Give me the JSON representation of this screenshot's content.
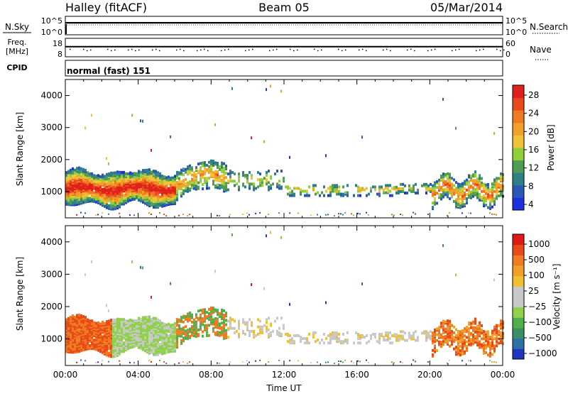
{
  "header": {
    "station": "Halley (fitACF)",
    "beam": "Beam 05",
    "date": "05/Mar/2014"
  },
  "strips": {
    "nsky": {
      "label": "N.Sky",
      "right_label": "N.Search",
      "tick_top": "10^5",
      "tick_bottom": "10^0",
      "level": 0.65
    },
    "freq": {
      "label": "Freq.",
      "unit": "[MHz]",
      "right_label": "Nave",
      "tick_top": "18",
      "tick_bottom": "8",
      "right_tick_top": "60",
      "right_tick_bottom": "0",
      "level": 0.55
    },
    "cpid": {
      "label": "CPID",
      "mode": "normal (fast) 151"
    }
  },
  "chart_data": [
    {
      "type": "heatmap",
      "quantity": "power",
      "ylabel": "Slant Range [km]",
      "xlabel": "",
      "xlim": [
        0,
        24
      ],
      "ylim": [
        180,
        4500
      ],
      "yticks": [
        "1000",
        "2000",
        "3000",
        "4000"
      ],
      "colorbar": {
        "label": "Power [dB]",
        "ticks": [
          "4",
          "8",
          "12",
          "16",
          "20",
          "24",
          "28"
        ],
        "range": [
          0,
          30
        ],
        "colors": [
          "#1f2fe0",
          "#2b57b8",
          "#2f7f86",
          "#4f9c52",
          "#8fcf3a",
          "#f0c23a",
          "#f2a02a",
          "#f07a20",
          "#e84a1c",
          "#e0201c"
        ]
      }
    },
    {
      "type": "heatmap",
      "quantity": "velocity",
      "ylabel": "Slant Range [km]",
      "xlabel": "Time UT",
      "xlim": [
        0,
        24
      ],
      "ylim": [
        180,
        4500
      ],
      "xticks": [
        "00:00",
        "04:00",
        "08:00",
        "12:00",
        "16:00",
        "20:00",
        "00:00"
      ],
      "yticks": [
        "1000",
        "2000",
        "3000",
        "4000"
      ],
      "colorbar": {
        "label": "Velocity [m s⁻¹]",
        "ticks": [
          "1000",
          "500",
          "100",
          "25",
          "−25",
          "−100",
          "−500",
          "−1000"
        ],
        "colors": [
          "#2235c0",
          "#2f6fa8",
          "#3a8f6a",
          "#4fb04a",
          "#8fd14a",
          "#c8c8c8",
          "#c8c8c8",
          "#f0c030",
          "#f0a028",
          "#f07a20",
          "#e84a18",
          "#e01818"
        ]
      }
    }
  ]
}
